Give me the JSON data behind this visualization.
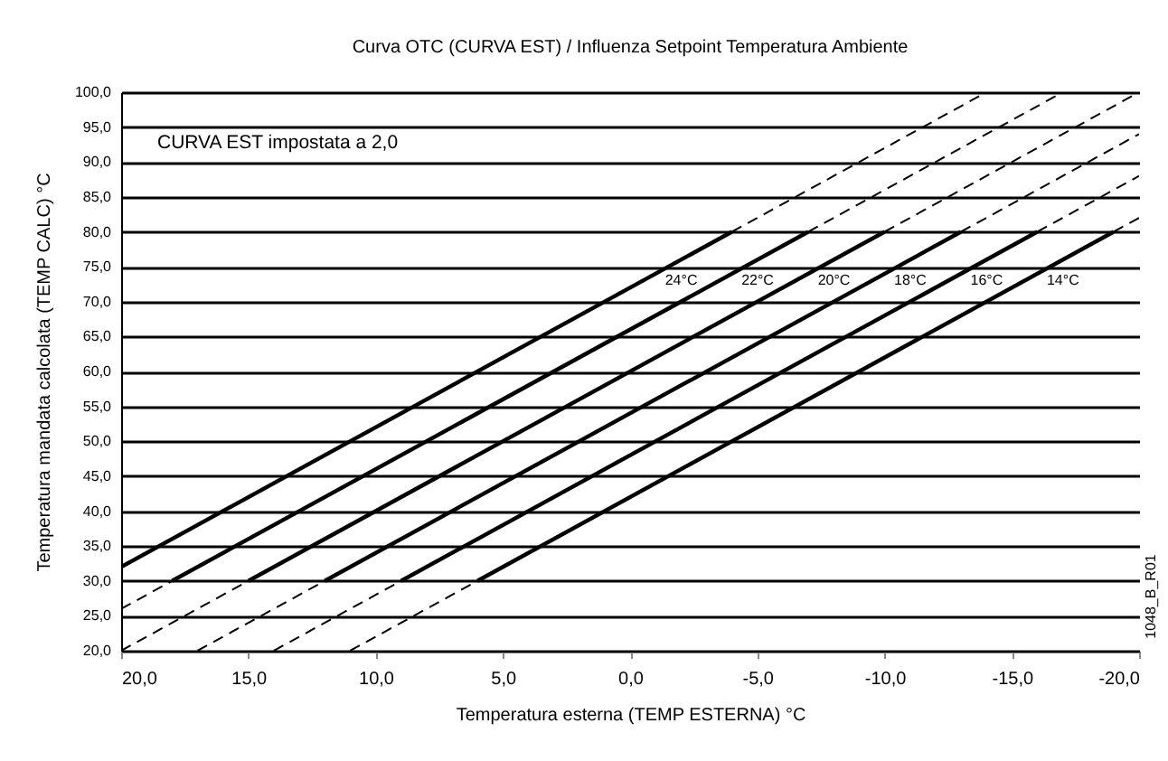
{
  "chart_data": {
    "type": "line",
    "title": "Curva OTC (CURVA EST) / Influenza Setpoint Temperatura Ambiente",
    "xlabel": "Temperatura esterna (TEMP ESTERNA) °C",
    "ylabel": "Temperatura mandata calcolata (TEMP CALC) °C",
    "xlim": [
      20,
      -20
    ],
    "ylim": [
      20,
      100
    ],
    "xticks": [
      {
        "value": 20,
        "label": "20,0"
      },
      {
        "value": 15,
        "label": "15,0"
      },
      {
        "value": 10,
        "label": "10,0"
      },
      {
        "value": 5,
        "label": "5,0"
      },
      {
        "value": 0,
        "label": "0,0"
      },
      {
        "value": -5,
        "label": "-5,0"
      },
      {
        "value": -10,
        "label": "-10,0"
      },
      {
        "value": -15,
        "label": "-15,0"
      },
      {
        "value": -20,
        "label": "-20,0"
      }
    ],
    "yticks": [
      {
        "value": 20,
        "label": "20,0"
      },
      {
        "value": 25,
        "label": "25,0"
      },
      {
        "value": 30,
        "label": "30,0"
      },
      {
        "value": 35,
        "label": "35,0"
      },
      {
        "value": 40,
        "label": "40,0"
      },
      {
        "value": 45,
        "label": "45,0"
      },
      {
        "value": 50,
        "label": "50,0"
      },
      {
        "value": 55,
        "label": "55,0"
      },
      {
        "value": 60,
        "label": "60,0"
      },
      {
        "value": 65,
        "label": "65,0"
      },
      {
        "value": 70,
        "label": "70,0"
      },
      {
        "value": 75,
        "label": "75,0"
      },
      {
        "value": 80,
        "label": "80,0"
      },
      {
        "value": 85,
        "label": "85,0"
      },
      {
        "value": 90,
        "label": "90,0"
      },
      {
        "value": 95,
        "label": "95,0"
      },
      {
        "value": 100,
        "label": "100,0"
      }
    ],
    "grid": "y",
    "marker": "none",
    "annotations": [
      "CURVA EST impostata a 2,0",
      "1048_B_R01"
    ],
    "series": [
      {
        "name": "24°C",
        "color": "#000000",
        "line_style": "solid",
        "x": [
          20,
          -4
        ],
        "values": [
          32,
          80
        ]
      },
      {
        "name": "22°C",
        "color": "#000000",
        "line_style": "solid",
        "x": [
          18,
          -7
        ],
        "values": [
          30,
          80
        ]
      },
      {
        "name": "20°C",
        "color": "#000000",
        "line_style": "solid",
        "x": [
          15,
          -10
        ],
        "values": [
          30,
          80
        ]
      },
      {
        "name": "18°C",
        "color": "#000000",
        "line_style": "solid",
        "x": [
          12,
          -13
        ],
        "values": [
          30,
          80
        ]
      },
      {
        "name": "16°C",
        "color": "#000000",
        "line_style": "solid",
        "x": [
          9,
          -16
        ],
        "values": [
          30,
          80
        ]
      },
      {
        "name": "14°C",
        "color": "#000000",
        "line_style": "solid",
        "x": [
          6,
          -19
        ],
        "values": [
          30,
          80
        ]
      },
      {
        "color": "#000000",
        "line_style": "dashed",
        "x": [
          20,
          18
        ],
        "values": [
          26,
          30
        ]
      },
      {
        "color": "#000000",
        "line_style": "dashed",
        "x": [
          20,
          15
        ],
        "values": [
          20,
          30
        ]
      },
      {
        "color": "#000000",
        "line_style": "dashed",
        "x": [
          17,
          12
        ],
        "values": [
          20,
          30
        ]
      },
      {
        "color": "#000000",
        "line_style": "dashed",
        "x": [
          14,
          9
        ],
        "values": [
          20,
          30
        ]
      },
      {
        "color": "#000000",
        "line_style": "dashed",
        "x": [
          11,
          6
        ],
        "values": [
          20,
          30
        ]
      },
      {
        "color": "#000000",
        "line_style": "dashed",
        "x": [
          -4,
          -14
        ],
        "values": [
          80,
          100
        ]
      },
      {
        "color": "#000000",
        "line_style": "dashed",
        "x": [
          -7,
          -17
        ],
        "values": [
          80,
          100
        ]
      },
      {
        "color": "#000000",
        "line_style": "dashed",
        "x": [
          -10,
          -20
        ],
        "values": [
          80,
          100
        ]
      },
      {
        "color": "#000000",
        "line_style": "dashed",
        "x": [
          -13,
          -20
        ],
        "values": [
          80,
          94
        ]
      },
      {
        "color": "#000000",
        "line_style": "dashed",
        "x": [
          -16,
          -20
        ],
        "values": [
          80,
          88
        ]
      },
      {
        "color": "#000000",
        "line_style": "dashed",
        "x": [
          -19,
          -20
        ],
        "values": [
          80,
          82
        ]
      }
    ]
  }
}
